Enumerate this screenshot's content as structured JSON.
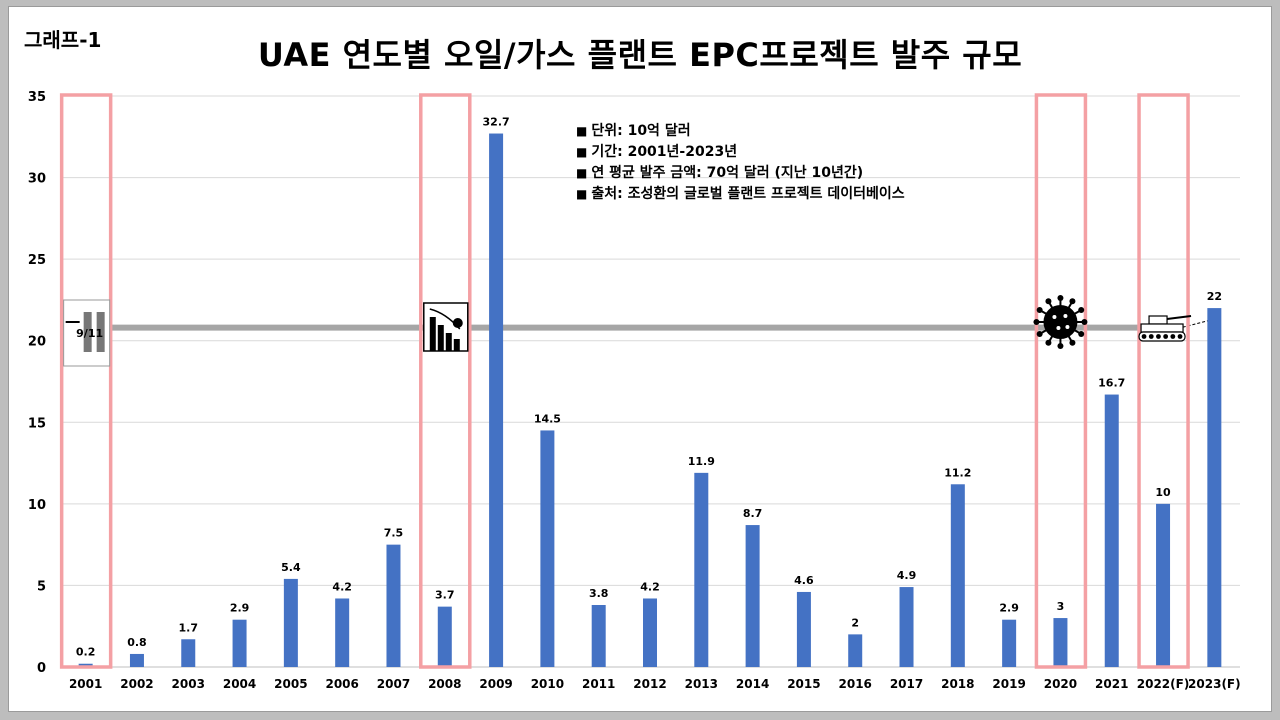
{
  "header": {
    "tag": "그래프-1",
    "title": "UAE 연도별 오일/가스 플랜트 EPC프로젝트 발주 규모"
  },
  "legend_notes": [
    "단위: 10억 달러",
    "기간: 2001년-2023년",
    "연 평균 발주 금액: 70억 달러 (지난 10년간)",
    "출처: 조성환의 글로벌 플랜트 프로젝트 데이터베이스"
  ],
  "event_icons": [
    {
      "name": "911-icon",
      "text": "9/11",
      "category": "2001"
    },
    {
      "name": "financial-crisis-icon",
      "category": "2008"
    },
    {
      "name": "covid-virus-icon",
      "category": "2020"
    },
    {
      "name": "tank-war-icon",
      "category": "2022(F)"
    }
  ],
  "highlight_categories": [
    "2001",
    "2008",
    "2020",
    "2022(F)"
  ],
  "colors": {
    "bar": "#4472c4",
    "highlight": "#f4a0a4",
    "trend_line": "#a6a6a6",
    "grid": "#d9d9d9"
  },
  "chart_data": {
    "type": "bar",
    "title": "UAE 연도별 오일/가스 플랜트 EPC프로젝트 발주 규모",
    "categories": [
      "2001",
      "2002",
      "2003",
      "2004",
      "2005",
      "2006",
      "2007",
      "2008",
      "2009",
      "2010",
      "2011",
      "2012",
      "2013",
      "2014",
      "2015",
      "2016",
      "2017",
      "2018",
      "2019",
      "2020",
      "2021",
      "2022(F)",
      "2023(F)"
    ],
    "values": [
      0.2,
      0.8,
      1.7,
      2.9,
      5.4,
      4.2,
      7.5,
      3.7,
      32.7,
      14.5,
      3.8,
      4.2,
      11.9,
      8.7,
      4.6,
      2,
      4.9,
      11.2,
      2.9,
      3,
      16.7,
      10,
      22
    ],
    "data_labels": [
      "0.2",
      "0.8",
      "1.7",
      "2.9",
      "5.4",
      "4.2",
      "7.5",
      "3.7",
      "32.7",
      "14.5",
      "3.8",
      "4.2",
      "11.9",
      "8.7",
      "4.6",
      "2",
      "4.9",
      "11.2",
      "2.9",
      "3",
      "16.7",
      "10",
      "22"
    ],
    "ylim": [
      0,
      35
    ],
    "yticks": [
      0,
      5,
      10,
      15,
      20,
      25,
      30,
      35
    ],
    "xlabel": "",
    "ylabel": "",
    "grid": true,
    "legend": "none"
  }
}
